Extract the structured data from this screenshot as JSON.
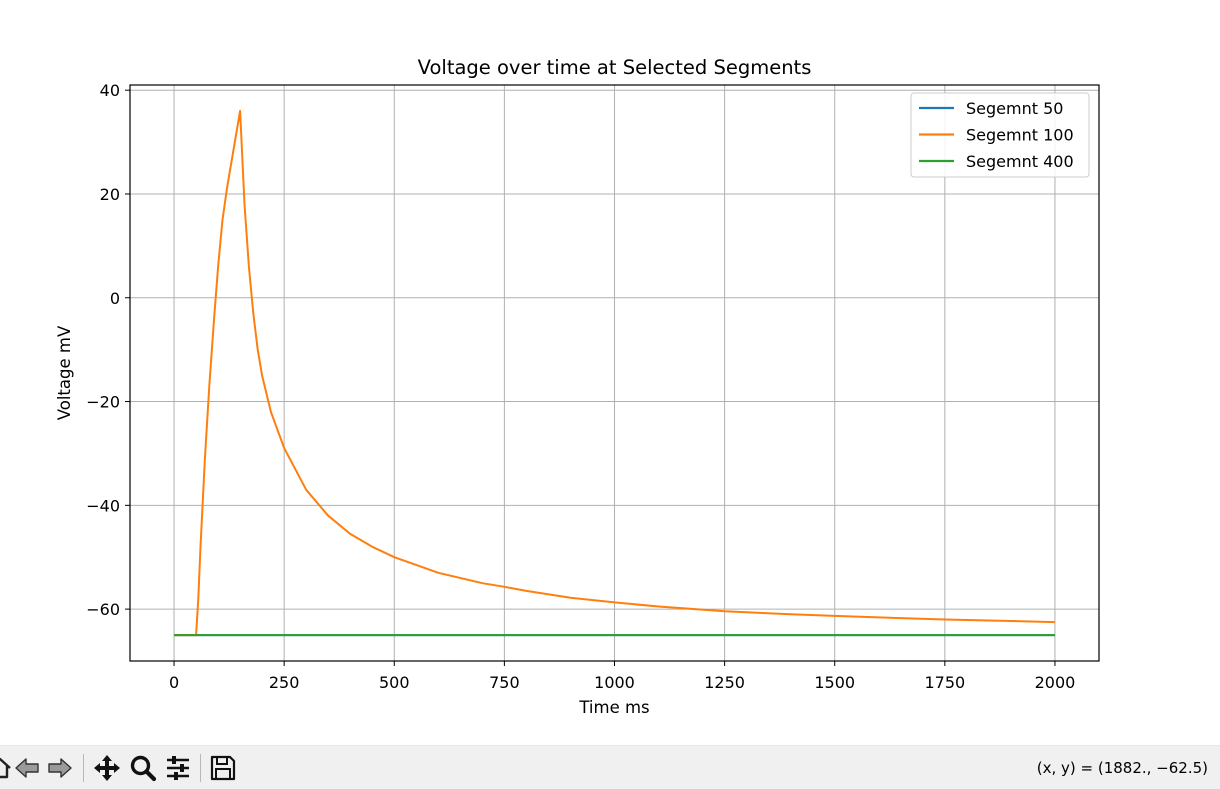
{
  "chart_data": {
    "type": "line",
    "title": "Voltage over time at Selected Segments",
    "xlabel": "Time ms",
    "ylabel": "Voltage mV",
    "xlim": [
      -100,
      2100
    ],
    "ylim": [
      -70,
      41
    ],
    "xticks": [
      0,
      250,
      500,
      750,
      1000,
      1250,
      1500,
      1750,
      2000
    ],
    "yticks": [
      -60,
      -40,
      -20,
      0,
      20,
      40
    ],
    "ytick_labels": [
      "−60",
      "−40",
      "−20",
      "0",
      "20",
      "40"
    ],
    "grid": true,
    "legend_position": "top-right",
    "series": [
      {
        "name": "Segemnt 50",
        "color": "#1f77b4",
        "x": [
          0,
          2000
        ],
        "y": [
          -65,
          -65
        ]
      },
      {
        "name": "Segemnt 100",
        "color": "#ff7f0e",
        "x": [
          0,
          50,
          55,
          60,
          70,
          80,
          90,
          100,
          110,
          120,
          130,
          140,
          150,
          155,
          160,
          170,
          180,
          190,
          200,
          220,
          250,
          300,
          350,
          400,
          450,
          500,
          600,
          700,
          750,
          800,
          900,
          1000,
          1100,
          1250,
          1400,
          1500,
          1600,
          1750,
          1900,
          2000
        ],
        "y": [
          -65,
          -65,
          -58,
          -48,
          -31,
          -17,
          -5,
          6,
          15,
          21,
          26,
          31,
          36,
          27,
          18,
          6,
          -3,
          -10,
          -15,
          -22,
          -29,
          -37,
          -42,
          -45.5,
          -48,
          -50,
          -53,
          -55,
          -55.7,
          -56.5,
          -57.8,
          -58.7,
          -59.5,
          -60.4,
          -61,
          -61.3,
          -61.6,
          -62,
          -62.3,
          -62.5
        ]
      },
      {
        "name": "Segemnt 400",
        "color": "#2ca02c",
        "x": [
          0,
          2000
        ],
        "y": [
          -65,
          -65
        ]
      }
    ]
  },
  "toolbar": {
    "buttons": [
      {
        "name": "home-button",
        "icon": "home-icon"
      },
      {
        "name": "back-button",
        "icon": "arrow-left-icon"
      },
      {
        "name": "forward-button",
        "icon": "arrow-right-icon"
      },
      {
        "name": "pan-button",
        "icon": "move-icon"
      },
      {
        "name": "zoom-button",
        "icon": "magnifier-icon"
      },
      {
        "name": "configure-subplots-button",
        "icon": "sliders-icon"
      },
      {
        "name": "save-button",
        "icon": "floppy-disk-icon"
      }
    ],
    "coords_text": "(x, y) = (1882., −62.5)"
  }
}
